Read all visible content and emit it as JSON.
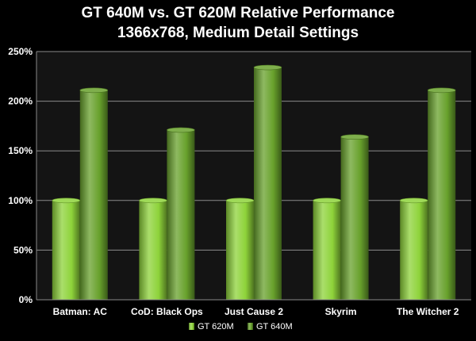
{
  "colors": {
    "background": "#000000",
    "plot_background": "#141414",
    "gridline": "#8a8a8a",
    "text": "#ffffff",
    "series_gt620m": "#8ed33a",
    "series_gt640m": "#68a12c"
  },
  "chart_data": {
    "type": "bar",
    "title": "GT 640M vs. GT 620M Relative Performance",
    "subtitle": "1366x768, Medium Detail Settings",
    "categories": [
      "Batman: AC",
      "CoD: Black Ops",
      "Just Cause 2",
      "Skyrim",
      "The Witcher 2"
    ],
    "series": [
      {
        "name": "GT 620M",
        "values": [
          100,
          100,
          100,
          100,
          100
        ]
      },
      {
        "name": "GT 640M",
        "values": [
          211,
          171,
          234,
          164,
          211
        ]
      }
    ],
    "y_ticks": [
      "0%",
      "50%",
      "100%",
      "150%",
      "200%",
      "250%"
    ],
    "ylim": [
      0,
      250
    ],
    "y_unit": "%",
    "grid": true,
    "legend_position": "bottom-center"
  }
}
